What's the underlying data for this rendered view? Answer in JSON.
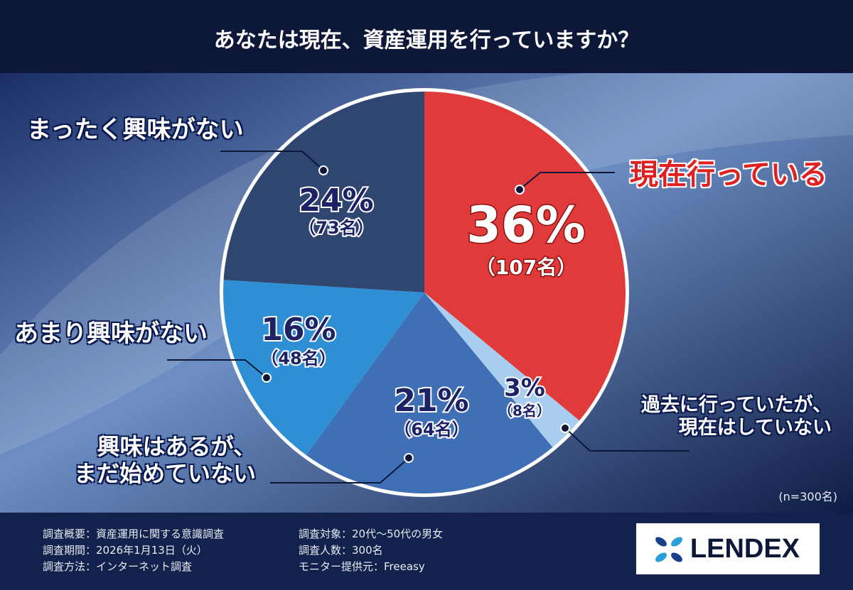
{
  "chart_data": {
    "type": "pie",
    "title": "あなたは現在、資産運用を行っていますか？",
    "categories": [
      "現在行っている",
      "過去に行っていたが、\n現在はしていない",
      "興味はあるが、\nまだ始めていない",
      "あまり興味がない",
      "まったく興味がない"
    ],
    "values": [
      36,
      3,
      21,
      16,
      24
    ],
    "value_labels": [
      "36%",
      "3%",
      "21%",
      "16%",
      "24%"
    ],
    "counts": [
      107,
      8,
      64,
      48,
      73
    ],
    "count_labels": [
      "（107名）",
      "（8名）",
      "（64名）",
      "（48名）",
      "（73名）"
    ],
    "colors": [
      "#e03a3a",
      "#a8cdef",
      "#3f6fb5",
      "#2f8fd4",
      "#2e4670"
    ],
    "note": "(n=300名)"
  },
  "footer": {
    "left": [
      "調査概要：資産運用に関する意識調査",
      "調査期間：2026年1月13日（火）",
      "調査方法：インターネット調査"
    ],
    "right": [
      "調査対象：20代～50代の男女",
      "調査人数：300名",
      "モニター提供元：Freeasy"
    ]
  },
  "logo": "LENDEX"
}
